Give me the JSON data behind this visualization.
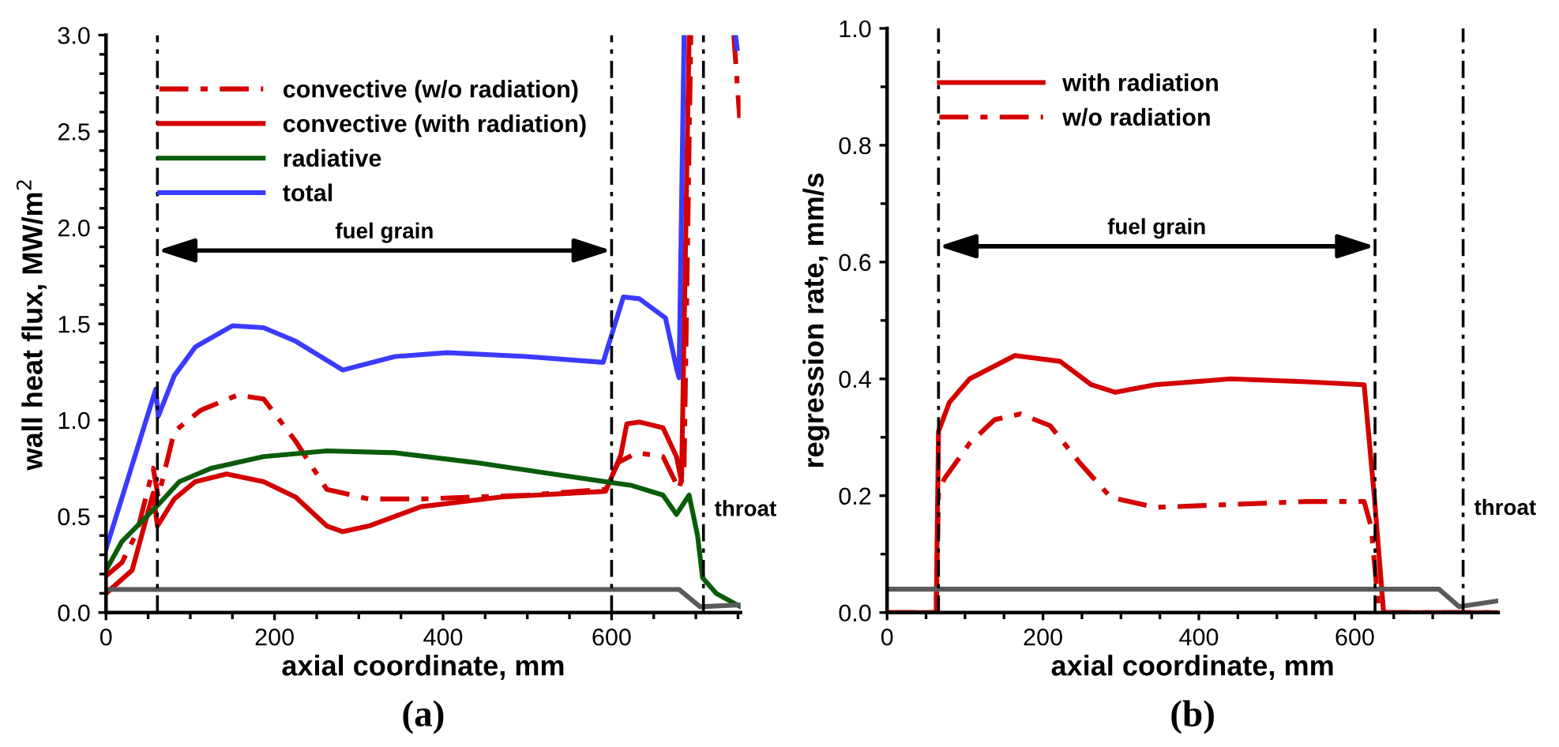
{
  "chart_data": [
    {
      "type": "line",
      "xlabel": "axial coordinate, mm",
      "ylabel": "wall heat flux, MW/m$^{2}$",
      "xlim": [
        0,
        753
      ],
      "ylim": [
        0,
        3.0
      ],
      "xticks": [
        0,
        {
          "value": 50,
          "label": null
        },
        {
          "value": 100,
          "label": null
        },
        {
          "value": 150,
          "label": null
        },
        200,
        {
          "value": 250,
          "label": null
        },
        {
          "value": 300,
          "label": null
        },
        {
          "value": 350,
          "label": null
        },
        400,
        {
          "value": 450,
          "label": null
        },
        {
          "value": 500,
          "label": null
        },
        {
          "value": 550,
          "label": null
        },
        600,
        {
          "value": 650,
          "label": null
        },
        {
          "value": 700,
          "label": null
        },
        {
          "value": 750,
          "label": null
        }
      ],
      "yticks": [
        {
          "value": 0,
          "label": "0.0"
        },
        {
          "value": 0.1,
          "label": null
        },
        {
          "value": 0.2,
          "label": null
        },
        {
          "value": 0.3,
          "label": null
        },
        {
          "value": 0.4,
          "label": null
        },
        {
          "value": 0.5,
          "label": "0.5"
        },
        {
          "value": 0.6,
          "label": null
        },
        {
          "value": 0.7,
          "label": null
        },
        {
          "value": 0.8,
          "label": null
        },
        {
          "value": 0.9,
          "label": null
        },
        {
          "value": 1.0,
          "label": "1.0"
        },
        {
          "value": 1.1,
          "label": null
        },
        {
          "value": 1.2,
          "label": null
        },
        {
          "value": 1.3,
          "label": null
        },
        {
          "value": 1.4,
          "label": null
        },
        {
          "value": 1.5,
          "label": "1.5"
        },
        {
          "value": 1.6,
          "label": null
        },
        {
          "value": 1.7,
          "label": null
        },
        {
          "value": 1.8,
          "label": null
        },
        {
          "value": 1.9,
          "label": null
        },
        {
          "value": 2.0,
          "label": "2.0"
        },
        {
          "value": 2.1,
          "label": null
        },
        {
          "value": 2.2,
          "label": null
        },
        {
          "value": 2.3,
          "label": null
        },
        {
          "value": 2.4,
          "label": null
        },
        {
          "value": 2.5,
          "label": "2.5"
        },
        {
          "value": 2.6,
          "label": null
        },
        {
          "value": 2.7,
          "label": null
        },
        {
          "value": 2.8,
          "label": null
        },
        {
          "value": 2.9,
          "label": null
        },
        {
          "value": 3.0,
          "label": "3.0"
        }
      ],
      "grid": false,
      "legend": "top left",
      "marker": "none",
      "series": [
        {
          "name": "convective (w/o radiation)",
          "color": "#d40000",
          "line_style": "dashdot",
          "x": [
            0,
            19,
            37,
            56,
            62,
            81,
            112,
            156,
            187,
            225,
            262,
            312,
            374,
            499,
            593,
            608,
            630,
            661,
            680,
            686,
            694,
            null,
            745,
            752
          ],
          "values": [
            0.19,
            0.26,
            0.42,
            0.75,
            0.6,
            0.94,
            1.05,
            1.13,
            1.11,
            0.89,
            0.64,
            0.59,
            0.59,
            0.61,
            0.64,
            0.78,
            0.83,
            0.81,
            0.64,
            0.75,
            3.0,
            null,
            3.0,
            2.57
          ]
        },
        {
          "name": "convective (with radiation)",
          "color": "#d40000",
          "line_style": "solid",
          "x": [
            0,
            31,
            56,
            61,
            81,
            106,
            143,
            187,
            225,
            262,
            281,
            312,
            374,
            468,
            593,
            611,
            618,
            633,
            661,
            677,
            683,
            692
          ],
          "values": [
            0.1,
            0.22,
            0.62,
            0.45,
            0.59,
            0.68,
            0.72,
            0.68,
            0.6,
            0.45,
            0.42,
            0.45,
            0.55,
            0.6,
            0.63,
            0.82,
            0.98,
            0.99,
            0.96,
            0.81,
            0.68,
            3.0
          ]
        },
        {
          "name": "radiative",
          "color": "#0a5c0a",
          "line_style": "solid",
          "x": [
            0,
            19,
            44,
            62,
            87,
            125,
            187,
            262,
            343,
            437,
            530,
            624,
            661,
            677,
            692,
            702,
            708,
            724,
            753
          ],
          "values": [
            0.22,
            0.37,
            0.48,
            0.56,
            0.68,
            0.75,
            0.81,
            0.84,
            0.83,
            0.78,
            0.72,
            0.66,
            0.61,
            0.51,
            0.61,
            0.4,
            0.18,
            0.1,
            0.03
          ]
        },
        {
          "name": "total",
          "color": "#3b3bff",
          "line_style": "solid",
          "x": [
            0,
            59,
            62,
            81,
            106,
            150,
            187,
            225,
            281,
            343,
            405,
            499,
            590,
            614,
            633,
            664,
            677,
            680,
            686,
            null,
            747,
            749
          ],
          "values": [
            0.33,
            1.16,
            1.02,
            1.23,
            1.38,
            1.49,
            1.48,
            1.41,
            1.26,
            1.33,
            1.35,
            1.33,
            1.3,
            1.64,
            1.63,
            1.53,
            1.27,
            1.22,
            3.0,
            null,
            3.0,
            2.93
          ]
        },
        {
          "color": "#5a5a5a",
          "line_style": "solid",
          "x": [
            0,
            680,
            705,
            753
          ],
          "values": [
            0.12,
            0.12,
            0.03,
            0.04
          ]
        }
      ],
      "ref_lines": [
        {
          "axis": "x",
          "value": 61,
          "color": "#000000",
          "line_style": "dashdot"
        },
        {
          "axis": "x",
          "value": 600,
          "color": "#000000",
          "line_style": "dashdot"
        },
        {
          "axis": "x",
          "value": 709,
          "color": "#000000",
          "line_style": "dashdot"
        }
      ],
      "annotations": [
        "fuel grain",
        "throat",
        "(a)"
      ]
    },
    {
      "type": "line",
      "xlabel": "axial coordinate, mm",
      "ylabel": "regression rate, mm/s",
      "xlim": [
        0,
        784
      ],
      "ylim": [
        0,
        1.0
      ],
      "xticks": [
        0,
        {
          "value": 50,
          "label": null
        },
        {
          "value": 100,
          "label": null
        },
        {
          "value": 150,
          "label": null
        },
        200,
        {
          "value": 250,
          "label": null
        },
        {
          "value": 300,
          "label": null
        },
        {
          "value": 350,
          "label": null
        },
        400,
        {
          "value": 450,
          "label": null
        },
        {
          "value": 500,
          "label": null
        },
        {
          "value": 550,
          "label": null
        },
        600,
        {
          "value": 650,
          "label": null
        },
        {
          "value": 700,
          "label": null
        },
        {
          "value": 750,
          "label": null
        }
      ],
      "yticks": [
        {
          "value": 0,
          "label": "0.0"
        },
        {
          "value": 0.1,
          "label": null
        },
        0.2,
        {
          "value": 0.3,
          "label": null
        },
        0.4,
        {
          "value": 0.5,
          "label": null
        },
        0.6,
        {
          "value": 0.7,
          "label": null
        },
        0.8,
        {
          "value": 0.9,
          "label": null
        },
        {
          "value": 1.0,
          "label": "1.0"
        }
      ],
      "grid": false,
      "legend": "top left",
      "marker": "none",
      "series": [
        {
          "name": "with radiation",
          "color": "#d40000",
          "line_style": "solid",
          "x": [
            0,
            63,
            66,
            80,
            106,
            164,
            222,
            262,
            293,
            344,
            441,
            538,
            612,
            625,
            637,
            784
          ],
          "values": [
            0,
            0,
            0.31,
            0.36,
            0.4,
            0.44,
            0.43,
            0.39,
            0.377,
            0.39,
            0.4,
            0.395,
            0.39,
            0.2,
            0,
            0
          ]
        },
        {
          "name": "w/o radiation",
          "color": "#d40000",
          "line_style": "dashdot",
          "x": [
            0,
            63,
            66,
            74,
            106,
            138,
            171,
            209,
            248,
            287,
            344,
            441,
            538,
            612,
            621,
            631,
            784
          ],
          "values": [
            0,
            0,
            0.21,
            0.23,
            0.29,
            0.33,
            0.34,
            0.32,
            0.255,
            0.197,
            0.18,
            0.185,
            0.19,
            0.19,
            0.147,
            0,
            0
          ]
        },
        {
          "color": "#5a5a5a",
          "line_style": "solid",
          "x": [
            0,
            708,
            734,
            784
          ],
          "values": [
            0.04,
            0.04,
            0.01,
            0.02
          ]
        }
      ],
      "ref_lines": [
        {
          "axis": "x",
          "value": 66,
          "color": "#000000",
          "line_style": "dashdot"
        },
        {
          "axis": "x",
          "value": 626,
          "color": "#000000",
          "line_style": "dashdot"
        },
        {
          "axis": "x",
          "value": 739,
          "color": "#000000",
          "line_style": "dashdot"
        }
      ],
      "annotations": [
        "fuel grain",
        "throat",
        "(b)"
      ]
    }
  ]
}
